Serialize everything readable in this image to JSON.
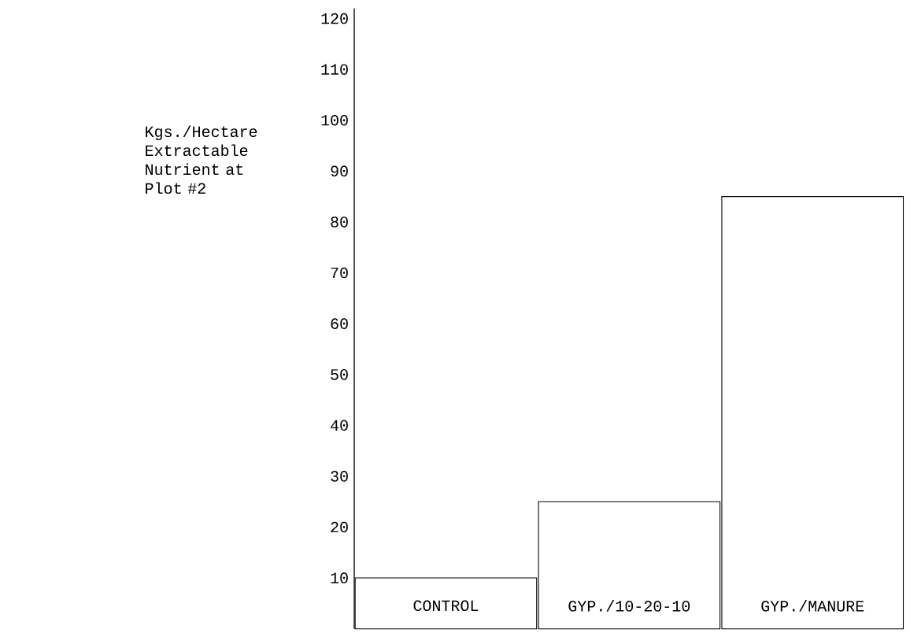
{
  "chart_data": {
    "type": "bar",
    "ylabel": "Kgs./Hectare Extractable Nutrient at Plot #2",
    "categories": [
      "CONTROL",
      "GYP./10-20-10",
      "GYP./MANURE"
    ],
    "values": [
      10,
      25,
      85
    ],
    "color": "#ffffff",
    "ylim": [
      0,
      122
    ],
    "yticks": [
      10,
      20,
      30,
      40,
      50,
      60,
      70,
      80,
      90,
      100,
      110,
      120
    ]
  }
}
